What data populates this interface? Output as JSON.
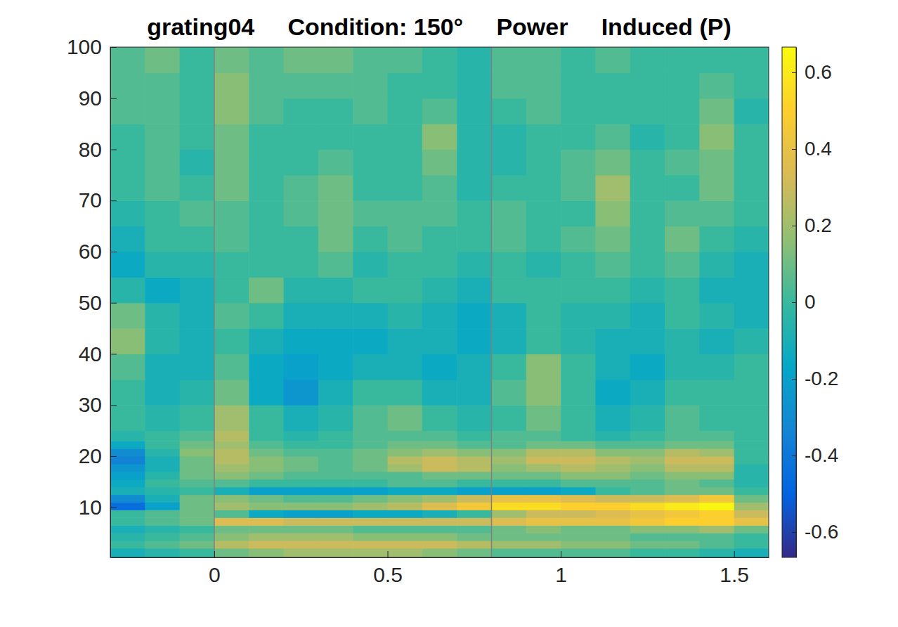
{
  "chart_data": {
    "type": "heatmap",
    "title": "grating04     Condition: 150°     Power     Induced (P)",
    "xlim": [
      -0.3,
      1.6
    ],
    "xticks": [
      0,
      0.5,
      1,
      1.5
    ],
    "ylim": [
      0.2,
      100
    ],
    "yticks": [
      10,
      20,
      30,
      40,
      50,
      60,
      70,
      80,
      90,
      100
    ],
    "vlines": [
      0,
      0.8
    ],
    "x_edges": [
      -0.3,
      -0.2,
      -0.1,
      0,
      0.1,
      0.2,
      0.3,
      0.4,
      0.5,
      0.6,
      0.7,
      0.8,
      0.9,
      1,
      1.1,
      1.2,
      1.3,
      1.4,
      1.5,
      1.6
    ],
    "y_edges": [
      0.2,
      2,
      3.5,
      5,
      6.5,
      8,
      9.5,
      11,
      12.5,
      14,
      15.5,
      17,
      18.5,
      20,
      21.5,
      23,
      25,
      30,
      35,
      40,
      45,
      50,
      55,
      60,
      65,
      70,
      75,
      80,
      85,
      90,
      95,
      100
    ],
    "values": [
      [
        -0.1,
        -0.05,
        0,
        0.1,
        0.15,
        0.2,
        0.2,
        0.2,
        0.2,
        0.15,
        0.1,
        0.05,
        0.05,
        0.05,
        0.05,
        0,
        0,
        -0.05,
        -0.1
      ],
      [
        0,
        0.05,
        0.1,
        0.25,
        0.3,
        0.3,
        0.3,
        0.3,
        0.3,
        0.3,
        0.25,
        0.2,
        0.2,
        0.15,
        0.15,
        0.1,
        0.1,
        0.05,
        0
      ],
      [
        -0.05,
        0,
        0.05,
        0.15,
        0.2,
        0.2,
        0.2,
        0.15,
        0.15,
        0.15,
        0.1,
        0.1,
        0.1,
        0.1,
        0.1,
        0.05,
        0.05,
        0.05,
        0
      ],
      [
        -0.1,
        -0.05,
        0,
        0.1,
        0.1,
        0.1,
        0.1,
        0.05,
        0.05,
        0.05,
        0.05,
        0.1,
        0.15,
        0.1,
        0.1,
        0.15,
        0.15,
        0.2,
        0.1
      ],
      [
        0,
        0.05,
        0.1,
        0.35,
        0.35,
        0.3,
        0.3,
        0.3,
        0.3,
        0.3,
        0.3,
        0.35,
        0.4,
        0.4,
        0.4,
        0.45,
        0.5,
        0.5,
        0.4
      ],
      [
        0,
        0.05,
        0.1,
        0.05,
        -0.15,
        -0.2,
        -0.2,
        -0.15,
        -0.15,
        -0.1,
        0,
        0.2,
        0.3,
        0.3,
        0.35,
        0.4,
        0.45,
        0.5,
        0.3
      ],
      [
        -0.45,
        -0.2,
        0.1,
        0.2,
        0.15,
        0.15,
        0.15,
        0.2,
        0.25,
        0.35,
        0.45,
        0.55,
        0.55,
        0.5,
        0.5,
        0.55,
        0.6,
        0.65,
        0.2
      ],
      [
        -0.3,
        -0.1,
        0.1,
        0.15,
        0.1,
        0.05,
        0.05,
        0.1,
        0.15,
        0.2,
        0.3,
        0.4,
        0.4,
        0.35,
        0.3,
        0.3,
        0.35,
        0.45,
        0.1
      ],
      [
        -0.1,
        -0.05,
        0,
        -0.1,
        -0.2,
        -0.2,
        -0.2,
        -0.2,
        -0.15,
        -0.15,
        -0.2,
        -0.2,
        -0.2,
        -0.15,
        0,
        0.05,
        0.1,
        0.1,
        0
      ],
      [
        -0.15,
        0,
        0.05,
        0.05,
        0,
        0,
        0,
        0,
        0.05,
        0.05,
        0,
        0,
        0,
        0.05,
        0.05,
        0.05,
        0.1,
        0.05,
        -0.05
      ],
      [
        -0.2,
        -0.05,
        0.1,
        0.15,
        0.1,
        0.05,
        0.05,
        0.05,
        0.05,
        0.1,
        0.1,
        0.1,
        0.1,
        0.15,
        0.15,
        0.1,
        0.15,
        0.15,
        -0.05
      ],
      [
        -0.25,
        -0.1,
        0.1,
        0.2,
        0.15,
        0.1,
        0.05,
        0.1,
        0.2,
        0.3,
        0.25,
        0.15,
        0.2,
        0.25,
        0.2,
        0.15,
        0.25,
        0.25,
        -0.05
      ],
      [
        -0.35,
        -0.1,
        0.1,
        0.25,
        0.15,
        0.1,
        0.05,
        0.1,
        0.25,
        0.3,
        0.25,
        0.2,
        0.3,
        0.3,
        0.25,
        0.2,
        0.3,
        0.3,
        0
      ],
      [
        -0.3,
        -0.05,
        0.15,
        0.25,
        0.1,
        0.05,
        0.05,
        0.1,
        0.15,
        0.2,
        0.15,
        0.15,
        0.25,
        0.25,
        0.15,
        0.15,
        0.25,
        0.2,
        0
      ],
      [
        -0.15,
        0,
        0.1,
        0.2,
        0.05,
        0,
        0,
        0.05,
        0.1,
        0.1,
        0.05,
        0.05,
        0.1,
        0.1,
        0.05,
        0.05,
        0.1,
        0.1,
        0
      ],
      [
        -0.05,
        0,
        0.05,
        0.25,
        0,
        -0.05,
        0,
        0.05,
        0.05,
        0.05,
        0,
        0.05,
        0.05,
        0,
        -0.05,
        0,
        0.05,
        0.05,
        0
      ],
      [
        0,
        -0.05,
        0,
        0.2,
        0,
        -0.1,
        -0.05,
        0.05,
        0.1,
        0,
        -0.05,
        0,
        0.1,
        0,
        -0.1,
        -0.05,
        0.05,
        0,
        0
      ],
      [
        0,
        -0.1,
        -0.05,
        0.1,
        -0.15,
        -0.25,
        -0.1,
        0,
        0,
        -0.1,
        -0.1,
        0.05,
        0.15,
        0,
        -0.15,
        -0.1,
        0,
        0,
        0
      ],
      [
        0.05,
        -0.1,
        -0.1,
        0.05,
        -0.15,
        -0.2,
        -0.15,
        -0.1,
        -0.1,
        -0.15,
        -0.1,
        0,
        0.15,
        0,
        -0.1,
        -0.15,
        -0.05,
        -0.05,
        0
      ],
      [
        0.15,
        -0.05,
        -0.1,
        0,
        -0.1,
        -0.15,
        -0.15,
        -0.15,
        -0.1,
        -0.1,
        -0.15,
        -0.1,
        0,
        -0.05,
        -0.1,
        -0.1,
        -0.05,
        -0.1,
        -0.05
      ],
      [
        0.1,
        -0.05,
        -0.1,
        0.05,
        0,
        -0.1,
        -0.1,
        -0.1,
        -0.05,
        -0.1,
        -0.15,
        -0.1,
        0,
        -0.05,
        -0.05,
        -0.1,
        0,
        -0.05,
        -0.1
      ],
      [
        -0.05,
        -0.15,
        -0.1,
        0,
        0.1,
        -0.05,
        -0.05,
        0,
        0,
        -0.05,
        -0.1,
        0,
        0,
        0,
        0,
        -0.05,
        0,
        -0.1,
        -0.1
      ],
      [
        -0.15,
        -0.05,
        -0.05,
        0,
        0,
        0,
        0.05,
        -0.05,
        0,
        0,
        -0.05,
        0,
        -0.05,
        0,
        0.05,
        0,
        0.05,
        -0.05,
        -0.1
      ],
      [
        -0.1,
        0,
        0,
        0.05,
        0,
        0,
        0.1,
        0,
        0.05,
        0,
        0,
        0.05,
        0,
        0.05,
        0.1,
        0,
        0.1,
        0,
        -0.05
      ],
      [
        -0.05,
        0,
        0.05,
        0.05,
        0,
        0.05,
        0.1,
        0.05,
        0.05,
        0.05,
        0,
        0.05,
        0,
        0,
        0.15,
        0,
        0.05,
        0.05,
        0
      ],
      [
        0,
        0.05,
        0,
        0.1,
        0,
        0.05,
        0.1,
        0,
        0,
        0.05,
        -0.05,
        0,
        0,
        0.05,
        0.2,
        0,
        0,
        0.1,
        0
      ],
      [
        0,
        0.05,
        -0.05,
        0.1,
        0,
        0,
        0.05,
        0,
        0,
        0.1,
        -0.05,
        -0.05,
        0,
        0.05,
        0.1,
        0,
        0.05,
        0.1,
        0
      ],
      [
        0,
        0.05,
        0,
        0.1,
        0,
        0,
        0,
        0,
        0,
        0.15,
        -0.05,
        -0.05,
        0,
        0,
        0.05,
        -0.05,
        0,
        0.15,
        0
      ],
      [
        0.05,
        0.05,
        0,
        0.15,
        0.05,
        0,
        0,
        0.05,
        0,
        0.05,
        -0.05,
        0,
        0.05,
        0,
        0,
        0,
        0,
        0.1,
        -0.05
      ],
      [
        0.05,
        0.05,
        0,
        0.15,
        0.05,
        0.05,
        0.05,
        0.05,
        0,
        0,
        -0.05,
        0.05,
        0.05,
        0,
        0,
        0,
        0,
        0.05,
        0
      ],
      [
        0.05,
        0.1,
        0,
        0.1,
        0.05,
        0.1,
        0.1,
        0.05,
        0.05,
        0,
        -0.05,
        0.05,
        0.05,
        0,
        0.05,
        0,
        0,
        0,
        0
      ]
    ],
    "clim": [
      -0.666,
      0.666
    ],
    "cticks": [
      -0.6,
      -0.4,
      -0.2,
      0,
      0.2,
      0.4,
      0.6
    ]
  }
}
